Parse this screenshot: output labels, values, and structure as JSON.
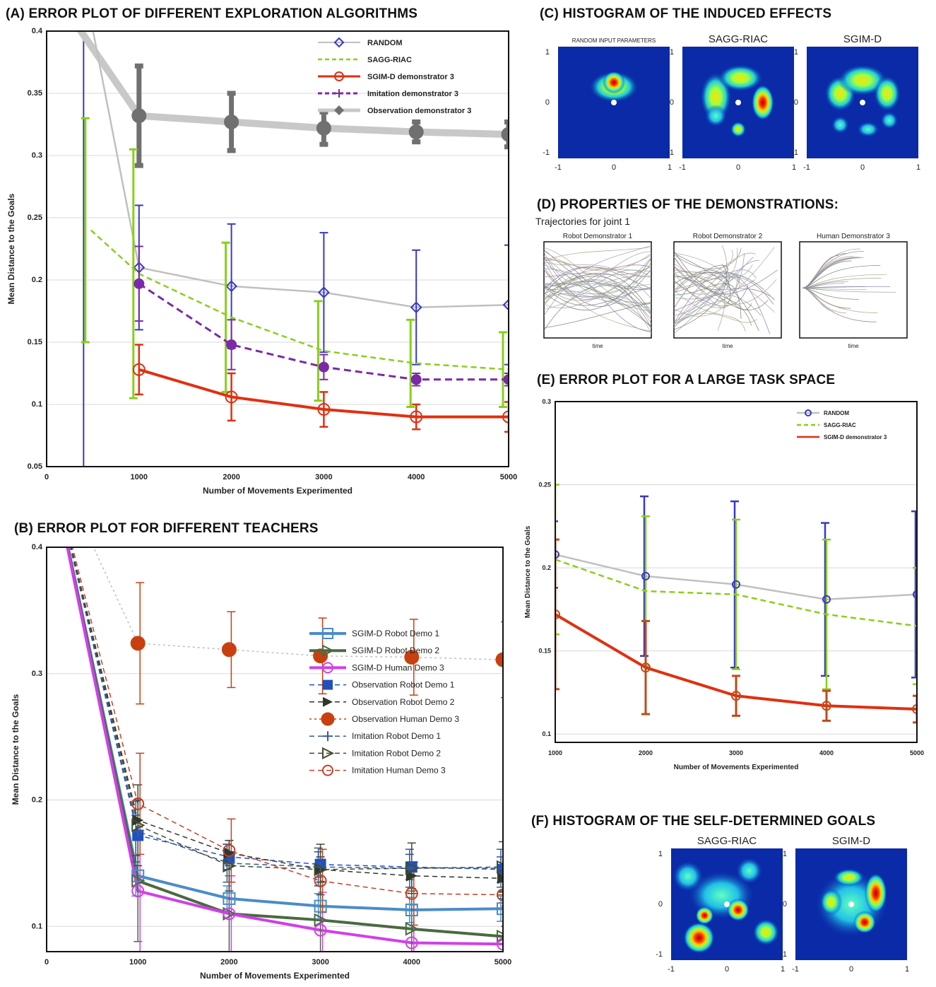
{
  "colors": {
    "random": "#3838c8",
    "random_line": "#c0c0c0",
    "sagg": "#88d018",
    "sgim": "#e03010",
    "imitation": "#7a2aa8",
    "observation": "#707070",
    "sgim_robot1": "#4a8cc8",
    "sgim_robot2": "#4a6a40",
    "sgim_human3": "#d040e8",
    "obs_robot1": "#2050c0",
    "obs_robot2": "#303828",
    "obs_human3": "#c84010",
    "imi_robot1": "#3a5a90",
    "imi_robot2": "#3e4e30",
    "imi_human3": "#c04028"
  },
  "panel_a": {
    "title": "(A) ERROR PLOT OF DIFFERENT EXPLORATION ALGORITHMS",
    "chart_data": {
      "type": "line",
      "xlabel": "Number of Movements Experimented",
      "ylabel": "Mean Distance to the Goals",
      "xlim": [
        0,
        5000
      ],
      "ylim": [
        0.05,
        0.4
      ],
      "xticks": [
        0,
        1000,
        2000,
        3000,
        4000,
        5000
      ],
      "xtick_labels": [
        "0",
        "1000",
        "2000",
        "3000",
        "4000",
        "5000"
      ],
      "yticks": [
        0.05,
        0.1,
        0.15,
        0.2,
        0.25,
        0.3,
        0.35,
        0.4
      ],
      "ytick_labels": [
        "0.05",
        "0.1",
        "0.15",
        "0.2",
        "0.25",
        "0.3",
        "0.35",
        "0.4"
      ],
      "grid": true,
      "legend_position": "top-right",
      "series": [
        {
          "name": "RANDOM",
          "key": "random",
          "x": [
            1000,
            2000,
            3000,
            4000,
            5000
          ],
          "y": [
            0.21,
            0.195,
            0.19,
            0.178,
            0.18
          ],
          "err": [
            0.05,
            0.05,
            0.048,
            0.046,
            0.048
          ]
        },
        {
          "name": "SAGG-RIAC",
          "key": "sagg",
          "x": [
            480,
            1000,
            2000,
            3000,
            4000,
            5000
          ],
          "y": [
            0.24,
            0.205,
            0.17,
            0.143,
            0.133,
            0.128
          ],
          "err": [
            0.09,
            0.1,
            0.06,
            0.04,
            0.035,
            0.03
          ]
        },
        {
          "name": "SGIM-D demonstrator 3",
          "key": "sgim",
          "x": [
            1000,
            2000,
            3000,
            4000,
            5000
          ],
          "y": [
            0.128,
            0.106,
            0.096,
            0.09,
            0.09
          ],
          "err": [
            0.02,
            0.019,
            0.014,
            0.01,
            0.012
          ]
        },
        {
          "name": "Imitation demonstrator 3",
          "key": "imitation",
          "x": [
            1000,
            2000,
            3000,
            4000,
            5000
          ],
          "y": [
            0.197,
            0.148,
            0.13,
            0.12,
            0.12
          ],
          "err": [
            0.03,
            0.02,
            0.01,
            0.005,
            0.005
          ]
        },
        {
          "name": "Observation demonstrator 3",
          "key": "observation",
          "x": [
            1000,
            2000,
            3000,
            4000,
            5000
          ],
          "y": [
            0.332,
            0.327,
            0.322,
            0.319,
            0.317
          ],
          "err": [
            0.04,
            0.023,
            0.013,
            0.008,
            0.01
          ]
        }
      ]
    }
  },
  "panel_b": {
    "title": "(B) ERROR PLOT FOR DIFFERENT TEACHERS",
    "chart_data": {
      "type": "line",
      "xlabel": "Number of Movements Experimented",
      "ylabel": "Mean Distance to the Goals",
      "xlim": [
        0,
        5000
      ],
      "ylim": [
        0.08,
        0.4
      ],
      "xticks": [
        0,
        1000,
        2000,
        3000,
        4000,
        5000
      ],
      "xtick_labels": [
        "0",
        "1000",
        "2000",
        "3000",
        "4000",
        "5000"
      ],
      "yticks": [
        0.1,
        0.2,
        0.3,
        0.4
      ],
      "ytick_labels": [
        "0.1",
        "0.2",
        "0.3",
        "0.4"
      ],
      "grid": true,
      "legend_position": "right",
      "series": [
        {
          "name": "SGIM-D Robot Demo 1",
          "key": "sgim_robot1",
          "style": "solid",
          "marker": "open-square",
          "x": [
            1000,
            2000,
            3000,
            4000,
            5000
          ],
          "y": [
            0.14,
            0.122,
            0.116,
            0.113,
            0.114
          ]
        },
        {
          "name": "SGIM-D Robot Demo 2",
          "key": "sgim_robot2",
          "style": "solid",
          "marker": "open-triangle",
          "x": [
            1000,
            2000,
            3000,
            4000,
            5000
          ],
          "y": [
            0.136,
            0.11,
            0.105,
            0.098,
            0.092
          ]
        },
        {
          "name": "SGIM-D Human Demo 3",
          "key": "sgim_human3",
          "style": "solid",
          "marker": "open-circle",
          "x": [
            1000,
            2000,
            3000,
            4000,
            5000
          ],
          "y": [
            0.128,
            0.11,
            0.097,
            0.087,
            0.086
          ]
        },
        {
          "name": "Observation Robot Demo 1",
          "key": "obs_robot1",
          "style": "dash",
          "marker": "square",
          "x": [
            1000,
            2000,
            3000,
            4000,
            5000
          ],
          "y": [
            0.172,
            0.155,
            0.149,
            0.147,
            0.145
          ]
        },
        {
          "name": "Observation Robot Demo 2",
          "key": "obs_robot2",
          "style": "dash",
          "marker": "triangle",
          "x": [
            1000,
            2000,
            3000,
            4000,
            5000
          ],
          "y": [
            0.184,
            0.158,
            0.145,
            0.14,
            0.138
          ]
        },
        {
          "name": "Observation Human Demo 3",
          "key": "obs_human3",
          "style": "dot",
          "marker": "circle",
          "x": [
            1000,
            2000,
            3000,
            4000,
            5000
          ],
          "y": [
            0.324,
            0.319,
            0.314,
            0.313,
            0.311
          ]
        },
        {
          "name": "Imitation Robot Demo 1",
          "key": "imi_robot1",
          "style": "dash",
          "marker": "plus",
          "x": [
            1000,
            2000,
            3000,
            4000,
            5000
          ],
          "y": [
            0.175,
            0.15,
            0.147,
            0.146,
            0.146
          ]
        },
        {
          "name": "Imitation Robot Demo 2",
          "key": "imi_robot2",
          "style": "dash",
          "marker": "open-triangle",
          "x": [
            1000,
            2000,
            3000,
            4000,
            5000
          ],
          "y": [
            0.18,
            0.148,
            0.145,
            0.146,
            0.147
          ]
        },
        {
          "name": "Imitation Human Demo 3",
          "key": "imi_human3",
          "style": "dash",
          "marker": "open-circle",
          "x": [
            1000,
            2000,
            3000,
            4000,
            5000
          ],
          "y": [
            0.197,
            0.16,
            0.136,
            0.126,
            0.125
          ]
        }
      ]
    }
  },
  "panel_c": {
    "title": "(C) HISTOGRAM OF THE INDUCED EFFECTS",
    "chart_data": {
      "type": "heatmap",
      "xlim": [
        -1,
        1
      ],
      "ylim": [
        -1,
        1
      ],
      "xtick_labels": [
        "-1",
        "0",
        "1"
      ],
      "ytick_labels": [
        "1",
        "0",
        "-1"
      ],
      "maps": [
        {
          "label": "RANDOM INPUT PARAMETERS"
        },
        {
          "label": "SAGG-RIAC"
        },
        {
          "label": "SGIM-D"
        }
      ]
    }
  },
  "panel_d": {
    "title": "(D) PROPERTIES OF THE DEMONSTRATIONS:",
    "subtitle": "Trajectories for joint 1",
    "plots": [
      {
        "label": "Robot Demonstrator 1",
        "xlabel": "time"
      },
      {
        "label": "Robot Demonstrator 2",
        "xlabel": "time"
      },
      {
        "label": "Human Demonstrator 3",
        "xlabel": "time"
      }
    ]
  },
  "panel_e": {
    "title": "(E) ERROR PLOT FOR A LARGE TASK SPACE",
    "chart_data": {
      "type": "line",
      "xlabel": "Number of Movements Experimented",
      "ylabel": "Mean Distance to the Goals",
      "xlim": [
        1000,
        5000
      ],
      "ylim": [
        0.095,
        0.3
      ],
      "xticks": [
        1000,
        2000,
        3000,
        4000,
        5000
      ],
      "xtick_labels": [
        "1000",
        "2000",
        "3000",
        "4000",
        "5000"
      ],
      "yticks": [
        0.1,
        0.15,
        0.2,
        0.25,
        0.3
      ],
      "ytick_labels": [
        "0.1",
        "0.15",
        "0.2",
        "0.25",
        "0.3"
      ],
      "grid": true,
      "legend_position": "top-right",
      "series": [
        {
          "name": "RANDOM",
          "key": "random",
          "x": [
            1000,
            2000,
            3000,
            4000,
            5000
          ],
          "y": [
            0.208,
            0.195,
            0.19,
            0.181,
            0.184
          ],
          "err": [
            0.02,
            0.048,
            0.05,
            0.046,
            0.05
          ]
        },
        {
          "name": "SAGG-RIAC",
          "key": "sagg",
          "x": [
            1000,
            2000,
            3000,
            4000,
            5000
          ],
          "y": [
            0.205,
            0.186,
            0.184,
            0.172,
            0.165
          ],
          "err": [
            0.045,
            0.045,
            0.045,
            0.045,
            0.035
          ]
        },
        {
          "name": "SGIM-D demonstrator 3",
          "key": "sgim",
          "x": [
            1000,
            2000,
            3000,
            4000,
            5000
          ],
          "y": [
            0.172,
            0.14,
            0.123,
            0.117,
            0.115
          ],
          "err": [
            0.045,
            0.028,
            0.012,
            0.009,
            0.008
          ]
        }
      ]
    }
  },
  "panel_f": {
    "title": "(F) HISTOGRAM OF THE SELF-DETERMINED GOALS",
    "chart_data": {
      "type": "heatmap",
      "xlim": [
        -1,
        1
      ],
      "ylim": [
        -1,
        1
      ],
      "xtick_labels": [
        "-1",
        "0",
        "1"
      ],
      "ytick_labels": [
        "1",
        "0",
        "-1"
      ],
      "maps": [
        {
          "label": "SAGG-RIAC"
        },
        {
          "label": "SGIM-D"
        }
      ]
    }
  }
}
